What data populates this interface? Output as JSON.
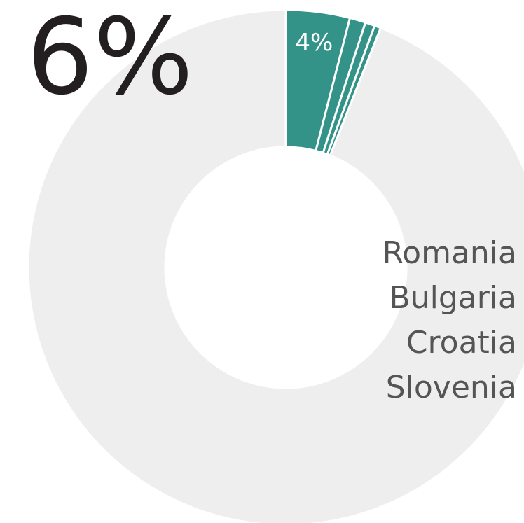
{
  "chart_data": {
    "type": "donut",
    "total_label": "6%",
    "categories": [
      "Romania",
      "Bulgaria",
      "Croatia",
      "Slovenia",
      null
    ],
    "values": [
      4,
      1,
      0.6,
      0.4,
      94
    ],
    "value_labels": [
      "4%",
      null,
      null,
      null,
      null
    ],
    "colors": [
      "#339388",
      "#339388",
      "#339388",
      "#339388",
      "#eeeeee"
    ]
  }
}
